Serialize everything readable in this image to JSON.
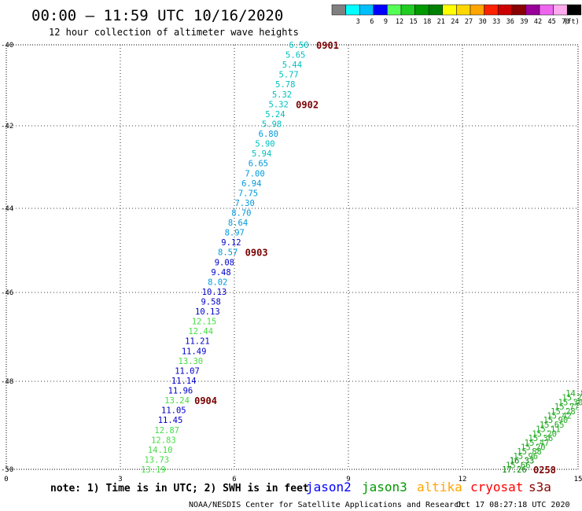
{
  "header": {
    "title": "00:00 – 11:59 UTC 10/16/2020",
    "subtitle": "12 hour collection of altimeter wave heights"
  },
  "legend": {
    "bins": [
      {
        "label": "",
        "color": "#808080"
      },
      {
        "label": "3",
        "color": "#00ffff"
      },
      {
        "label": "6",
        "color": "#00bfff"
      },
      {
        "label": "9",
        "color": "#0000ff"
      },
      {
        "label": "12",
        "color": "#55ff55"
      },
      {
        "label": "15",
        "color": "#22cc22"
      },
      {
        "label": "18",
        "color": "#009900"
      },
      {
        "label": "21",
        "color": "#008000"
      },
      {
        "label": "24",
        "color": "#ffff00"
      },
      {
        "label": "27",
        "color": "#ffd700"
      },
      {
        "label": "30",
        "color": "#ffa500"
      },
      {
        "label": "33",
        "color": "#ff2200"
      },
      {
        "label": "36",
        "color": "#cc0000"
      },
      {
        "label": "39",
        "color": "#880000"
      },
      {
        "label": "42",
        "color": "#990099"
      },
      {
        "label": "45",
        "color": "#ee66ee"
      },
      {
        "label": "70",
        "color": "#ffaaee"
      },
      {
        "label": "",
        "color": "#000000"
      }
    ],
    "unit": "(ft)"
  },
  "axes": {
    "x_ticks": [
      "0",
      "3",
      "6",
      "9",
      "12",
      "15"
    ],
    "y_ticks": [
      "-40",
      "-42",
      "-44",
      "-46",
      "-48",
      "-50"
    ]
  },
  "tracks": [
    {
      "satellite": "jason2",
      "points": [
        {
          "v": "6.50",
          "c": "#00bfbf"
        },
        {
          "v": "5.65",
          "c": "#00bfbf"
        },
        {
          "v": "5.44",
          "c": "#00bfbf"
        },
        {
          "v": "5.77",
          "c": "#00bfbf"
        },
        {
          "v": "5.78",
          "c": "#00bfbf"
        },
        {
          "v": "5.32",
          "c": "#00bfbf"
        },
        {
          "v": "5.32",
          "c": "#00bfbf"
        },
        {
          "v": "5.24",
          "c": "#00bfbf"
        },
        {
          "v": "5.98",
          "c": "#00bfbf"
        },
        {
          "v": "6.80",
          "c": "#0099dd"
        },
        {
          "v": "5.90",
          "c": "#00bfbf"
        },
        {
          "v": "5.94",
          "c": "#00bfbf"
        },
        {
          "v": "6.65",
          "c": "#0099dd"
        },
        {
          "v": "7.00",
          "c": "#0099dd"
        },
        {
          "v": "6.94",
          "c": "#0099dd"
        },
        {
          "v": "7.75",
          "c": "#0099dd"
        },
        {
          "v": "7.30",
          "c": "#0099dd"
        },
        {
          "v": "8.70",
          "c": "#0099dd"
        },
        {
          "v": "8.64",
          "c": "#0099dd"
        },
        {
          "v": "8.97",
          "c": "#0099dd"
        },
        {
          "v": "9.12",
          "c": "#0000cc"
        },
        {
          "v": "8.57",
          "c": "#0099dd"
        },
        {
          "v": "9.08",
          "c": "#0000cc"
        },
        {
          "v": "9.48",
          "c": "#0000cc"
        },
        {
          "v": "8.02",
          "c": "#0099dd"
        },
        {
          "v": "10.13",
          "c": "#0000cc"
        },
        {
          "v": "9.58",
          "c": "#0000cc"
        },
        {
          "v": "10.13",
          "c": "#0000cc"
        },
        {
          "v": "12.15",
          "c": "#44dd44"
        },
        {
          "v": "12.44",
          "c": "#44dd44"
        },
        {
          "v": "11.21",
          "c": "#0000cc"
        },
        {
          "v": "11.49",
          "c": "#0000cc"
        },
        {
          "v": "13.30",
          "c": "#44dd44"
        },
        {
          "v": "11.07",
          "c": "#0000cc"
        },
        {
          "v": "11.14",
          "c": "#0000cc"
        },
        {
          "v": "11.96",
          "c": "#0000cc"
        },
        {
          "v": "13.24",
          "c": "#44dd44"
        },
        {
          "v": "11.05",
          "c": "#0000cc"
        },
        {
          "v": "11.45",
          "c": "#0000cc"
        },
        {
          "v": "12.87",
          "c": "#44dd44"
        },
        {
          "v": "12.83",
          "c": "#44dd44"
        },
        {
          "v": "14.10",
          "c": "#44dd44"
        },
        {
          "v": "13.73",
          "c": "#44dd44"
        },
        {
          "v": "13.19",
          "c": "#44dd44"
        }
      ],
      "times": [
        {
          "t": "0901",
          "after_index": 0
        },
        {
          "t": "0902",
          "after_index": 6
        },
        {
          "t": "0903",
          "after_index": 21
        },
        {
          "t": "0904",
          "after_index": 36
        }
      ]
    },
    {
      "satellite": "jason3",
      "points": [
        {
          "v": "17.26",
          "c": "#008000"
        },
        {
          "v": "15.66",
          "c": "#22aa22"
        },
        {
          "v": "16.33",
          "c": "#008000"
        },
        {
          "v": "15.96",
          "c": "#22aa22"
        },
        {
          "v": "15.88",
          "c": "#22aa22"
        },
        {
          "v": "15.20",
          "c": "#22aa22"
        },
        {
          "v": "15.47",
          "c": "#22aa22"
        },
        {
          "v": "15.36",
          "c": "#22aa22"
        },
        {
          "v": "15.20",
          "c": "#22aa22"
        },
        {
          "v": "15.11",
          "c": "#22aa22"
        },
        {
          "v": "15.65",
          "c": "#22aa22"
        },
        {
          "v": "15.90",
          "c": "#22aa22"
        },
        {
          "v": "15.42",
          "c": "#22aa22"
        },
        {
          "v": "15.28",
          "c": "#22aa22"
        },
        {
          "v": "15.77",
          "c": "#22aa22"
        },
        {
          "v": "15.30",
          "c": "#22aa22"
        },
        {
          "v": "15.29",
          "c": "#22aa22"
        },
        {
          "v": "14.88",
          "c": "#22aa22"
        }
      ],
      "times": [
        {
          "t": "0258",
          "after_index": 0
        }
      ]
    }
  ],
  "footer": {
    "note": "note: 1) Time is in UTC; 2) SWH is in feet",
    "satellites": [
      {
        "name": "jason2",
        "color": "#0000ff"
      },
      {
        "name": "jason3",
        "color": "#009900"
      },
      {
        "name": "altika",
        "color": "#ffa500"
      },
      {
        "name": "cryosat",
        "color": "#ff0000"
      },
      {
        "name": "s3a",
        "color": "#880000"
      }
    ],
    "credit": "NOAA/NESDIS Center for Satellite Applications and Research",
    "timestamp": "Oct 17 08:27:18 UTC 2020"
  }
}
